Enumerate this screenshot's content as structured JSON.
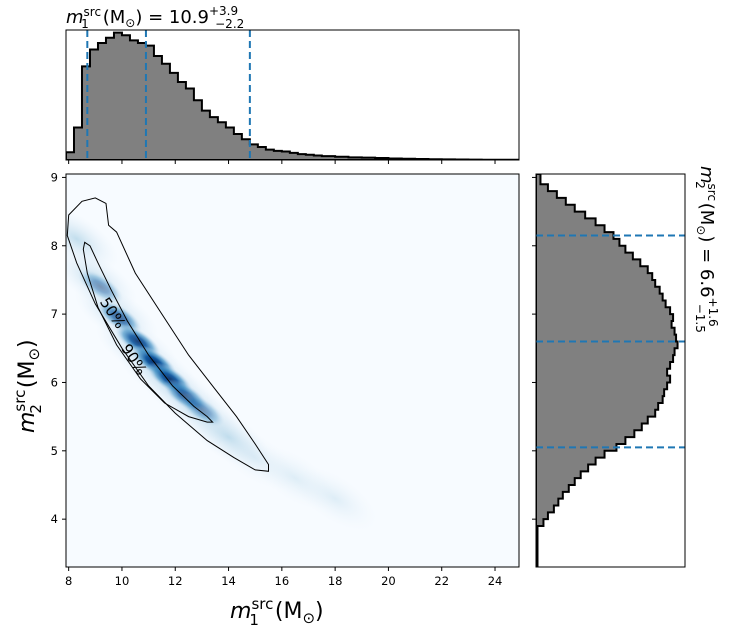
{
  "chart_data": {
    "type": "corner",
    "summary": {
      "m1": {
        "median": 10.9,
        "plus": 3.9,
        "minus": 2.2,
        "title_prefix": "m",
        "title_sup": "src",
        "title_sub": "1",
        "unit": "(M",
        "unit_sub": "⊙",
        "unit_close": ")"
      },
      "m2": {
        "median": 6.6,
        "plus": 1.6,
        "minus": 1.5,
        "title_prefix": "m",
        "title_sup": "src",
        "title_sub": "2",
        "unit": "(M",
        "unit_sub": "⊙",
        "unit_close": ")"
      }
    },
    "xlabel": {
      "var": "m",
      "sup": "src",
      "sub": "1",
      "unit": "(M",
      "unit_sub": "⊙",
      "unit_close": ")"
    },
    "ylabel": {
      "var": "m",
      "sup": "src",
      "sub": "2",
      "unit": "(M",
      "unit_sub": "⊙",
      "unit_close": ")"
    },
    "xlim": [
      7.9,
      24.9
    ],
    "ylim": [
      3.3,
      9.05
    ],
    "xticks": [
      "8",
      "10",
      "12",
      "14",
      "16",
      "18",
      "20",
      "22",
      "24"
    ],
    "yticks": [
      "4",
      "5",
      "6",
      "7",
      "8",
      "9"
    ],
    "m1_quantile_lines": [
      8.7,
      10.9,
      14.8
    ],
    "m2_quantile_lines": [
      5.05,
      6.6,
      8.15
    ],
    "m1_hist": {
      "edges": [
        7.9,
        8.2,
        8.5,
        8.8,
        9.1,
        9.4,
        9.7,
        10.0,
        10.3,
        10.6,
        10.9,
        11.2,
        11.5,
        11.8,
        12.1,
        12.4,
        12.7,
        13.0,
        13.3,
        13.6,
        13.9,
        14.2,
        14.5,
        14.8,
        15.1,
        15.4,
        15.7,
        16.0,
        16.3,
        16.6,
        16.9,
        17.2,
        17.5,
        18.0,
        18.5,
        19.0,
        19.5,
        20.0,
        20.5,
        21.0,
        21.5,
        22.0,
        22.5,
        23.0,
        23.5,
        24.0,
        24.9
      ],
      "density": [
        0.06,
        0.25,
        0.72,
        0.85,
        0.9,
        0.94,
        0.98,
        0.96,
        0.92,
        0.9,
        0.88,
        0.8,
        0.74,
        0.67,
        0.6,
        0.55,
        0.46,
        0.38,
        0.33,
        0.29,
        0.25,
        0.2,
        0.16,
        0.12,
        0.1,
        0.08,
        0.07,
        0.065,
        0.055,
        0.045,
        0.04,
        0.035,
        0.03,
        0.025,
        0.02,
        0.018,
        0.015,
        0.012,
        0.01,
        0.008,
        0.006,
        0.005,
        0.004,
        0.003,
        0.002,
        0.002
      ]
    },
    "m2_hist": {
      "edges": [
        3.3,
        3.9,
        4.0,
        4.1,
        4.2,
        4.3,
        4.4,
        4.5,
        4.6,
        4.7,
        4.8,
        4.9,
        5.0,
        5.1,
        5.2,
        5.3,
        5.4,
        5.5,
        5.6,
        5.7,
        5.8,
        5.9,
        6.0,
        6.1,
        6.2,
        6.3,
        6.4,
        6.5,
        6.6,
        6.7,
        6.8,
        6.9,
        7.0,
        7.1,
        7.2,
        7.3,
        7.4,
        7.5,
        7.6,
        7.7,
        7.8,
        7.9,
        8.0,
        8.1,
        8.2,
        8.3,
        8.4,
        8.5,
        8.6,
        8.7,
        8.8,
        8.9,
        9.05
      ],
      "density": [
        0.01,
        0.05,
        0.08,
        0.12,
        0.15,
        0.18,
        0.22,
        0.26,
        0.3,
        0.35,
        0.4,
        0.46,
        0.54,
        0.6,
        0.66,
        0.71,
        0.75,
        0.8,
        0.82,
        0.85,
        0.86,
        0.88,
        0.9,
        0.88,
        0.9,
        0.92,
        0.93,
        0.95,
        0.94,
        0.93,
        0.91,
        0.92,
        0.9,
        0.87,
        0.85,
        0.83,
        0.8,
        0.78,
        0.75,
        0.7,
        0.65,
        0.6,
        0.56,
        0.52,
        0.46,
        0.4,
        0.33,
        0.26,
        0.2,
        0.14,
        0.08,
        0.03
      ]
    },
    "posterior_2d": {
      "colormap": "Blues",
      "peak_point": [
        11.5,
        6.2
      ],
      "contours": [
        {
          "label": "50%",
          "points": [
            [
              8.6,
              8.05
            ],
            [
              8.8,
              8.0
            ],
            [
              9.1,
              7.75
            ],
            [
              9.6,
              7.35
            ],
            [
              10.2,
              6.9
            ],
            [
              11.0,
              6.4
            ],
            [
              11.9,
              5.95
            ],
            [
              12.7,
              5.65
            ],
            [
              13.2,
              5.5
            ],
            [
              13.4,
              5.42
            ],
            [
              13.2,
              5.42
            ],
            [
              12.5,
              5.5
            ],
            [
              11.6,
              5.7
            ],
            [
              10.7,
              6.05
            ],
            [
              9.8,
              6.55
            ],
            [
              9.1,
              7.1
            ],
            [
              8.7,
              7.6
            ],
            [
              8.55,
              7.95
            ],
            [
              8.6,
              8.05
            ]
          ]
        },
        {
          "label": "90%",
          "points": [
            [
              8.0,
              8.45
            ],
            [
              8.5,
              8.65
            ],
            [
              9.0,
              8.7
            ],
            [
              9.4,
              8.62
            ],
            [
              9.5,
              8.3
            ],
            [
              9.8,
              8.2
            ],
            [
              10.5,
              7.6
            ],
            [
              11.5,
              7.0
            ],
            [
              12.5,
              6.4
            ],
            [
              13.5,
              5.9
            ],
            [
              14.3,
              5.5
            ],
            [
              15.0,
              5.1
            ],
            [
              15.5,
              4.8
            ],
            [
              15.5,
              4.7
            ],
            [
              15.0,
              4.72
            ],
            [
              14.2,
              4.9
            ],
            [
              13.2,
              5.15
            ],
            [
              12.0,
              5.55
            ],
            [
              11.0,
              5.95
            ],
            [
              10.0,
              6.5
            ],
            [
              9.0,
              7.15
            ],
            [
              8.3,
              7.75
            ],
            [
              7.95,
              8.15
            ],
            [
              8.0,
              8.45
            ]
          ]
        }
      ]
    },
    "colors": {
      "hist_fill": "#808080",
      "hist_edge": "#000000",
      "quantile_line": "#1f77b4",
      "contour": "#000000"
    }
  }
}
